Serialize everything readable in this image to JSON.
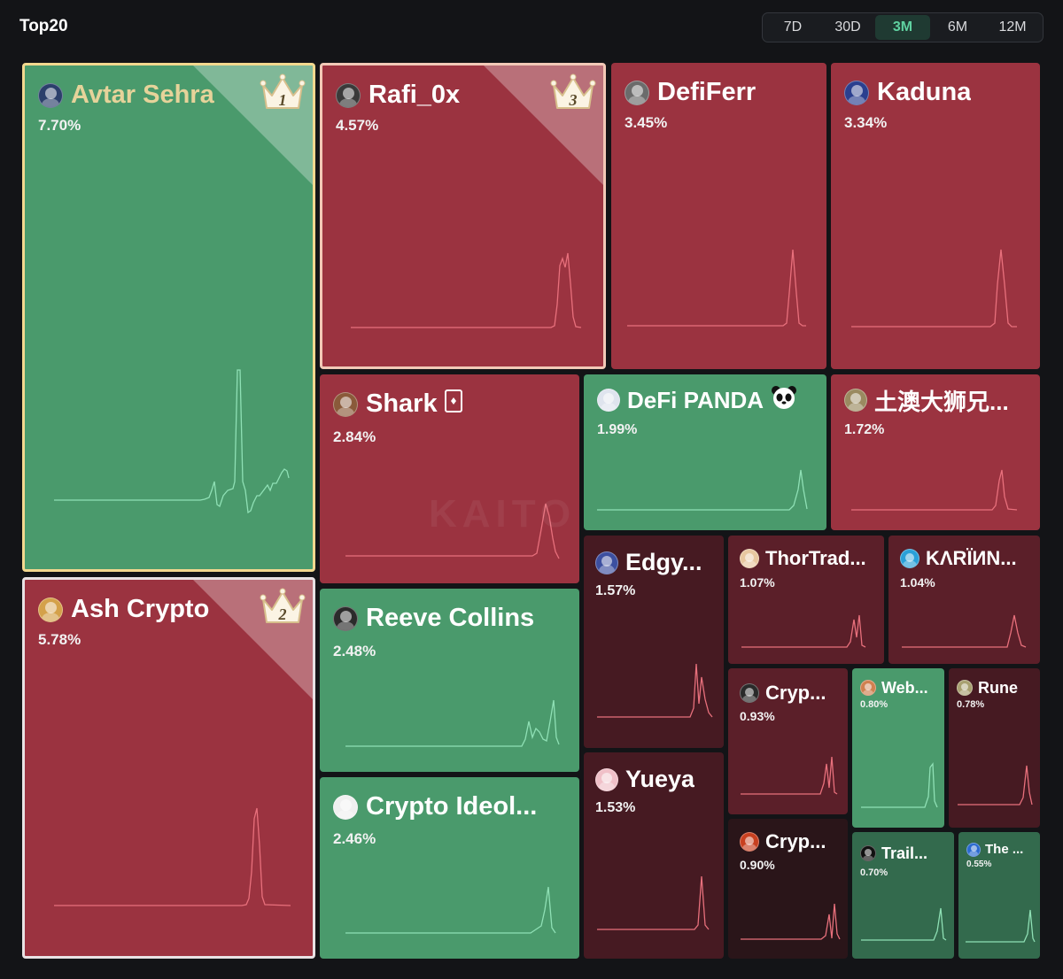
{
  "header": {
    "title": "Top20"
  },
  "periods": [
    {
      "label": "7D",
      "active": false
    },
    {
      "label": "30D",
      "active": false
    },
    {
      "label": "3M",
      "active": true
    },
    {
      "label": "6M",
      "active": false
    },
    {
      "label": "12M",
      "active": false
    }
  ],
  "watermark": "KAITO",
  "colors": {
    "up": "#4a9a6c",
    "down": "#9b3340",
    "accent": "#5fd1a0",
    "gold_border": "#f2d88f"
  },
  "tiles": [
    {
      "name": "Avtar Sehra",
      "pct": "7.70%",
      "trend": "up",
      "rank": "1"
    },
    {
      "name": "Ash Crypto",
      "pct": "5.78%",
      "trend": "down",
      "rank": "2"
    },
    {
      "name": "Rafi_0x",
      "pct": "4.57%",
      "trend": "down",
      "rank": "3"
    },
    {
      "name": "DefiFerr",
      "pct": "3.45%",
      "trend": "down"
    },
    {
      "name": "Kaduna",
      "pct": "3.34%",
      "trend": "down"
    },
    {
      "name": "Shark",
      "pct": "2.84%",
      "trend": "down"
    },
    {
      "name": "DeFi PANDA",
      "pct": "1.99%",
      "trend": "up"
    },
    {
      "name": "土澳大狮兄...",
      "pct": "1.72%",
      "trend": "down"
    },
    {
      "name": "Reeve Collins",
      "pct": "2.48%",
      "trend": "up"
    },
    {
      "name": "Crypto Ideol...",
      "pct": "2.46%",
      "trend": "up"
    },
    {
      "name": "Edgy...",
      "pct": "1.57%",
      "trend": "down"
    },
    {
      "name": "ThorTrad...",
      "pct": "1.07%",
      "trend": "down"
    },
    {
      "name": "KΛRÏИN...",
      "pct": "1.04%",
      "trend": "down"
    },
    {
      "name": "Cryp...",
      "pct": "0.93%",
      "trend": "down"
    },
    {
      "name": "Web...",
      "pct": "0.80%",
      "trend": "up"
    },
    {
      "name": "Rune",
      "pct": "0.78%",
      "trend": "down"
    },
    {
      "name": "Yueya",
      "pct": "1.53%",
      "trend": "down"
    },
    {
      "name": "Cryp...",
      "pct": "0.90%",
      "trend": "down"
    },
    {
      "name": "Trail...",
      "pct": "0.70%",
      "trend": "up"
    },
    {
      "name": "The ...",
      "pct": "0.55%",
      "trend": "up"
    }
  ]
}
